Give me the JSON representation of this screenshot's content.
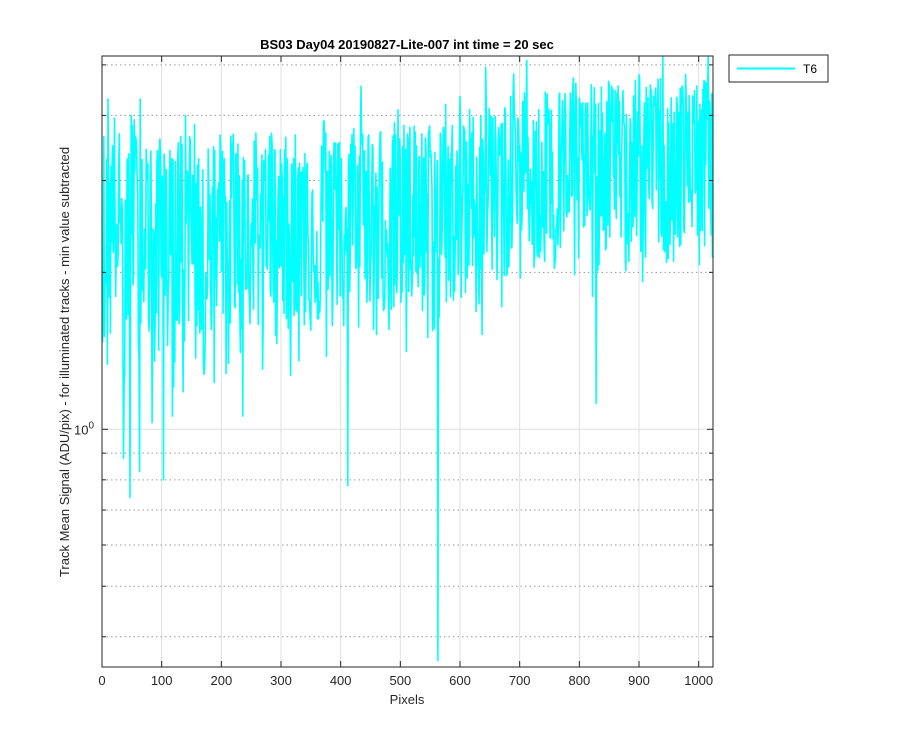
{
  "chart_data": {
    "type": "line",
    "title": "BS03 Day04 20190827-Lite-007 int time = 20 sec",
    "xlabel": "Pixels",
    "ylabel": "Track Mean Signal (ADU/pix) - for illuminated tracks - min value subtracted",
    "xlim": [
      0,
      1024
    ],
    "ylim": [
      0.35,
      5.2
    ],
    "yscale": "log",
    "x_ticks": [
      0,
      100,
      200,
      300,
      400,
      500,
      600,
      700,
      800,
      900,
      1000
    ],
    "x_tick_labels": [
      "0",
      "100",
      "200",
      "300",
      "400",
      "500",
      "600",
      "700",
      "800",
      "900",
      "1000"
    ],
    "y_ticks": [
      1
    ],
    "y_tick_labels": [
      {
        "base": "10",
        "exp": "0"
      }
    ],
    "grid": true,
    "legend": {
      "position": "outside-top-right",
      "entries": [
        "T6"
      ]
    },
    "series": [
      {
        "name": "T6",
        "color": "#00ffff",
        "x_step": 10,
        "x": [
          0,
          10,
          20,
          30,
          40,
          50,
          60,
          70,
          80,
          90,
          100,
          110,
          120,
          130,
          140,
          150,
          160,
          170,
          180,
          190,
          200,
          210,
          220,
          230,
          240,
          250,
          260,
          270,
          280,
          290,
          300,
          310,
          320,
          330,
          340,
          350,
          360,
          370,
          380,
          390,
          400,
          410,
          420,
          430,
          440,
          450,
          460,
          470,
          480,
          490,
          500,
          510,
          520,
          530,
          540,
          550,
          560,
          570,
          580,
          590,
          600,
          610,
          620,
          630,
          640,
          650,
          660,
          670,
          680,
          690,
          700,
          710,
          720,
          730,
          740,
          750,
          760,
          770,
          780,
          790,
          800,
          810,
          820,
          830,
          840,
          850,
          860,
          870,
          880,
          890,
          900,
          910,
          920,
          930,
          940,
          950,
          960,
          970,
          980,
          990,
          1000,
          1010,
          1020
        ],
        "values": [
          2.6,
          2.1,
          2.9,
          2.4,
          1.9,
          3.1,
          2.2,
          2.7,
          2.3,
          2.0,
          2.8,
          2.4,
          2.1,
          2.6,
          2.2,
          2.9,
          2.5,
          1.9,
          2.7,
          2.3,
          2.6,
          2.0,
          2.8,
          2.4,
          2.2,
          2.7,
          2.5,
          2.1,
          2.9,
          2.3,
          2.6,
          2.4,
          2.8,
          2.2,
          2.5,
          2.7,
          2.3,
          2.9,
          2.6,
          2.4,
          2.8,
          2.2,
          2.7,
          2.5,
          2.9,
          2.6,
          2.3,
          2.8,
          2.5,
          2.7,
          2.4,
          2.9,
          2.6,
          2.8,
          2.5,
          2.7,
          2.3,
          2.9,
          2.6,
          2.8,
          2.5,
          2.7,
          2.9,
          2.6,
          3.3,
          3.0,
          2.8,
          3.1,
          2.9,
          3.2,
          3.0,
          3.3,
          3.1,
          2.9,
          3.2,
          3.4,
          3.0,
          3.3,
          3.1,
          3.5,
          3.2,
          3.0,
          3.4,
          3.1,
          3.3,
          3.6,
          3.2,
          3.4,
          3.0,
          3.3,
          3.5,
          3.2,
          3.4,
          3.6,
          3.3,
          3.1,
          3.5,
          3.3,
          3.6,
          3.4,
          3.2,
          3.5,
          3.3
        ],
        "upper": [
          3.9,
          3.4,
          4.1,
          3.7,
          3.1,
          4.3,
          3.5,
          3.8,
          3.6,
          3.2,
          4.0,
          3.6,
          3.3,
          3.8,
          3.4,
          4.0,
          3.7,
          3.1,
          3.9,
          3.5,
          3.8,
          3.2,
          4.0,
          3.6,
          3.4,
          3.9,
          3.7,
          3.3,
          4.1,
          3.5,
          3.8,
          3.6,
          4.0,
          3.4,
          3.7,
          3.9,
          3.5,
          4.1,
          3.8,
          3.6,
          4.0,
          3.4,
          3.9,
          3.7,
          4.1,
          3.8,
          3.5,
          4.0,
          3.7,
          3.9,
          3.6,
          4.1,
          3.8,
          4.0,
          3.7,
          3.9,
          3.5,
          4.1,
          3.8,
          4.0,
          3.7,
          4.3,
          4.1,
          3.8,
          4.6,
          4.3,
          4.0,
          4.4,
          4.2,
          4.5,
          4.2,
          4.6,
          4.4,
          4.1,
          4.5,
          4.7,
          4.3,
          4.6,
          4.4,
          4.9,
          4.5,
          4.3,
          4.7,
          4.4,
          4.6,
          5.0,
          4.5,
          4.7,
          4.3,
          4.6,
          4.9,
          4.5,
          4.7,
          5.0,
          4.6,
          4.4,
          4.8,
          4.6,
          5.0,
          4.7,
          4.5,
          4.8,
          4.6
        ],
        "lower": [
          1.5,
          1.2,
          1.8,
          1.4,
          1.0,
          1.9,
          1.3,
          1.7,
          1.4,
          1.1,
          1.7,
          1.4,
          1.2,
          1.6,
          1.3,
          1.8,
          1.5,
          1.1,
          1.6,
          1.4,
          1.5,
          1.2,
          1.7,
          1.4,
          1.3,
          1.6,
          1.5,
          1.2,
          1.8,
          1.4,
          1.6,
          1.5,
          1.7,
          1.3,
          1.5,
          1.6,
          1.4,
          1.8,
          1.6,
          1.5,
          1.7,
          1.3,
          1.6,
          1.5,
          1.8,
          1.6,
          1.4,
          1.7,
          1.5,
          1.6,
          1.5,
          1.8,
          1.6,
          1.7,
          1.5,
          1.6,
          1.4,
          1.8,
          1.6,
          1.7,
          1.6,
          1.7,
          1.8,
          1.6,
          2.1,
          1.9,
          1.8,
          2.0,
          1.9,
          2.1,
          1.9,
          2.1,
          2.0,
          1.9,
          2.1,
          2.2,
          1.9,
          2.1,
          2.0,
          2.2,
          2.0,
          1.9,
          2.2,
          2.0,
          2.1,
          2.3,
          2.0,
          2.2,
          1.9,
          2.1,
          2.2,
          2.0,
          2.2,
          2.3,
          2.1,
          2.0,
          2.2,
          2.1,
          2.3,
          2.2,
          2.0,
          2.2,
          2.1
        ],
        "dips": [
          {
            "x": 36,
            "y": 0.88
          },
          {
            "x": 47,
            "y": 0.74
          },
          {
            "x": 63,
            "y": 0.83
          },
          {
            "x": 84,
            "y": 1.03
          },
          {
            "x": 103,
            "y": 0.8
          },
          {
            "x": 118,
            "y": 1.06
          },
          {
            "x": 136,
            "y": 1.18
          },
          {
            "x": 157,
            "y": 1.37
          },
          {
            "x": 188,
            "y": 1.23
          },
          {
            "x": 208,
            "y": 1.28
          },
          {
            "x": 236,
            "y": 1.06
          },
          {
            "x": 270,
            "y": 1.55
          },
          {
            "x": 316,
            "y": 1.27
          },
          {
            "x": 350,
            "y": 1.55
          },
          {
            "x": 376,
            "y": 1.38
          },
          {
            "x": 412,
            "y": 0.78
          },
          {
            "x": 460,
            "y": 1.52
          },
          {
            "x": 489,
            "y": 1.72
          },
          {
            "x": 510,
            "y": 1.41
          },
          {
            "x": 546,
            "y": 1.5
          },
          {
            "x": 563,
            "y": 0.36
          },
          {
            "x": 637,
            "y": 1.52
          },
          {
            "x": 670,
            "y": 1.72
          },
          {
            "x": 742,
            "y": 2.1
          },
          {
            "x": 792,
            "y": 1.98
          },
          {
            "x": 822,
            "y": 1.8
          },
          {
            "x": 828,
            "y": 1.12
          },
          {
            "x": 906,
            "y": 1.92
          },
          {
            "x": 958,
            "y": 2.1
          },
          {
            "x": 1010,
            "y": 2.25
          }
        ],
        "peaks": [
          {
            "x": 10,
            "y": 4.3
          },
          {
            "x": 64,
            "y": 4.3
          },
          {
            "x": 140,
            "y": 4.0
          },
          {
            "x": 258,
            "y": 3.7
          },
          {
            "x": 434,
            "y": 4.55
          },
          {
            "x": 496,
            "y": 4.1
          },
          {
            "x": 576,
            "y": 4.2
          },
          {
            "x": 600,
            "y": 4.35
          },
          {
            "x": 643,
            "y": 4.95
          },
          {
            "x": 690,
            "y": 4.8
          },
          {
            "x": 712,
            "y": 5.1
          },
          {
            "x": 940,
            "y": 5.2
          },
          {
            "x": 1016,
            "y": 5.2
          }
        ]
      }
    ]
  }
}
